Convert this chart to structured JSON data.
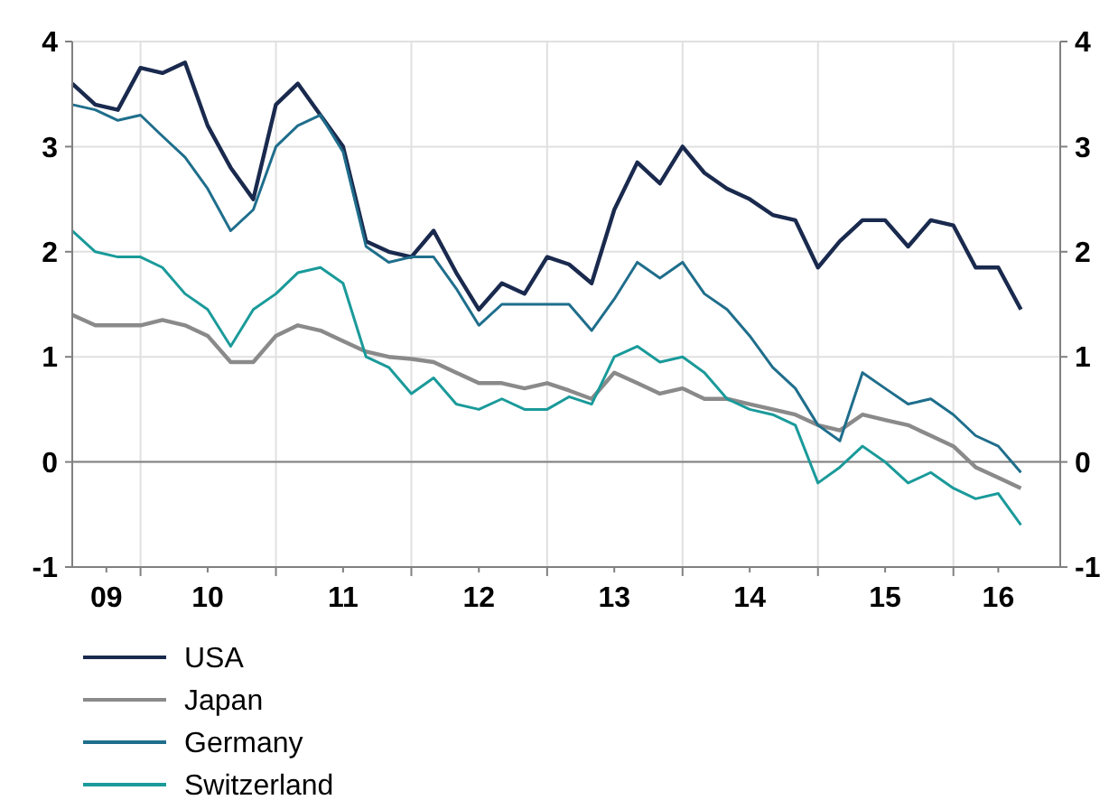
{
  "chart_data": {
    "type": "line",
    "x": [
      "2009-07",
      "2009-09",
      "2009-11",
      "2010-01",
      "2010-03",
      "2010-05",
      "2010-07",
      "2010-09",
      "2010-11",
      "2011-01",
      "2011-03",
      "2011-05",
      "2011-07",
      "2011-09",
      "2011-11",
      "2012-01",
      "2012-03",
      "2012-05",
      "2012-07",
      "2012-09",
      "2012-11",
      "2013-01",
      "2013-03",
      "2013-05",
      "2013-07",
      "2013-09",
      "2013-11",
      "2014-01",
      "2014-03",
      "2014-05",
      "2014-07",
      "2014-09",
      "2014-11",
      "2015-01",
      "2015-03",
      "2015-05",
      "2015-07",
      "2015-09",
      "2015-11",
      "2016-01",
      "2016-03",
      "2016-05",
      "2016-07"
    ],
    "series": [
      {
        "name": "USA",
        "color": "#1a2a4e",
        "values": [
          3.6,
          3.4,
          3.35,
          3.75,
          3.7,
          3.8,
          3.2,
          2.8,
          2.5,
          3.4,
          3.6,
          3.3,
          3.0,
          2.1,
          2.0,
          1.95,
          2.2,
          1.8,
          1.45,
          1.7,
          1.6,
          1.95,
          1.88,
          1.7,
          2.4,
          2.85,
          2.65,
          3.0,
          2.75,
          2.6,
          2.5,
          2.35,
          2.3,
          1.85,
          2.1,
          2.3,
          2.3,
          2.05,
          2.3,
          2.25,
          1.85,
          1.85,
          1.45
        ]
      },
      {
        "name": "Japan",
        "color": "#8a8a8a",
        "values": [
          1.4,
          1.3,
          1.3,
          1.3,
          1.35,
          1.3,
          1.2,
          0.95,
          0.95,
          1.2,
          1.3,
          1.25,
          1.15,
          1.05,
          1.0,
          0.98,
          0.95,
          0.85,
          0.75,
          0.75,
          0.7,
          0.75,
          0.68,
          0.6,
          0.85,
          0.75,
          0.65,
          0.7,
          0.6,
          0.6,
          0.55,
          0.5,
          0.45,
          0.35,
          0.3,
          0.45,
          0.4,
          0.35,
          0.25,
          0.15,
          -0.05,
          -0.15,
          -0.25
        ]
      },
      {
        "name": "Germany",
        "color": "#1f6e8c",
        "values": [
          3.4,
          3.35,
          3.25,
          3.3,
          3.1,
          2.9,
          2.6,
          2.2,
          2.4,
          3.0,
          3.2,
          3.3,
          2.95,
          2.05,
          1.9,
          1.95,
          1.95,
          1.65,
          1.3,
          1.5,
          1.5,
          1.5,
          1.5,
          1.25,
          1.55,
          1.9,
          1.75,
          1.9,
          1.6,
          1.45,
          1.2,
          0.9,
          0.7,
          0.35,
          0.2,
          0.85,
          0.7,
          0.55,
          0.6,
          0.45,
          0.25,
          0.15,
          -0.1
        ]
      },
      {
        "name": "Switzerland",
        "color": "#1a9a9a",
        "values": [
          2.2,
          2.0,
          1.95,
          1.95,
          1.85,
          1.6,
          1.45,
          1.1,
          1.45,
          1.6,
          1.8,
          1.85,
          1.7,
          1.0,
          0.9,
          0.65,
          0.8,
          0.55,
          0.5,
          0.6,
          0.5,
          0.5,
          0.62,
          0.55,
          1.0,
          1.1,
          0.95,
          1.0,
          0.85,
          0.6,
          0.5,
          0.45,
          0.35,
          -0.2,
          -0.05,
          0.15,
          0.0,
          -0.2,
          -0.1,
          -0.25,
          -0.35,
          -0.3,
          -0.6
        ]
      }
    ],
    "xlim": [
      "2009-07-01",
      "2016-10-15"
    ],
    "xticks": [
      {
        "value": "2009-10",
        "label": "09"
      },
      {
        "value": "2010-01",
        "label": null
      },
      {
        "value": "2010-07",
        "label": "10"
      },
      {
        "value": "2011-01",
        "label": null
      },
      {
        "value": "2011-07",
        "label": "11"
      },
      {
        "value": "2012-01",
        "label": null
      },
      {
        "value": "2012-07",
        "label": "12"
      },
      {
        "value": "2013-01",
        "label": null
      },
      {
        "value": "2013-07",
        "label": "13"
      },
      {
        "value": "2014-01",
        "label": null
      },
      {
        "value": "2014-07",
        "label": "14"
      },
      {
        "value": "2015-01",
        "label": null
      },
      {
        "value": "2015-07",
        "label": "15"
      },
      {
        "value": "2016-01",
        "label": null
      },
      {
        "value": "2016-05",
        "label": "16"
      }
    ],
    "ylim": [
      -1,
      4
    ],
    "yticks": [
      -1,
      0,
      1,
      2,
      3,
      4
    ],
    "y2lim": [
      -1,
      4
    ],
    "y2ticks": [
      -1,
      0,
      1,
      2,
      3,
      4
    ],
    "ref_lines": [
      {
        "axis": "y",
        "value": 0,
        "color": "#808080"
      }
    ],
    "grid": true,
    "legend": "bottom",
    "line_style": "solid",
    "marker": "none"
  }
}
